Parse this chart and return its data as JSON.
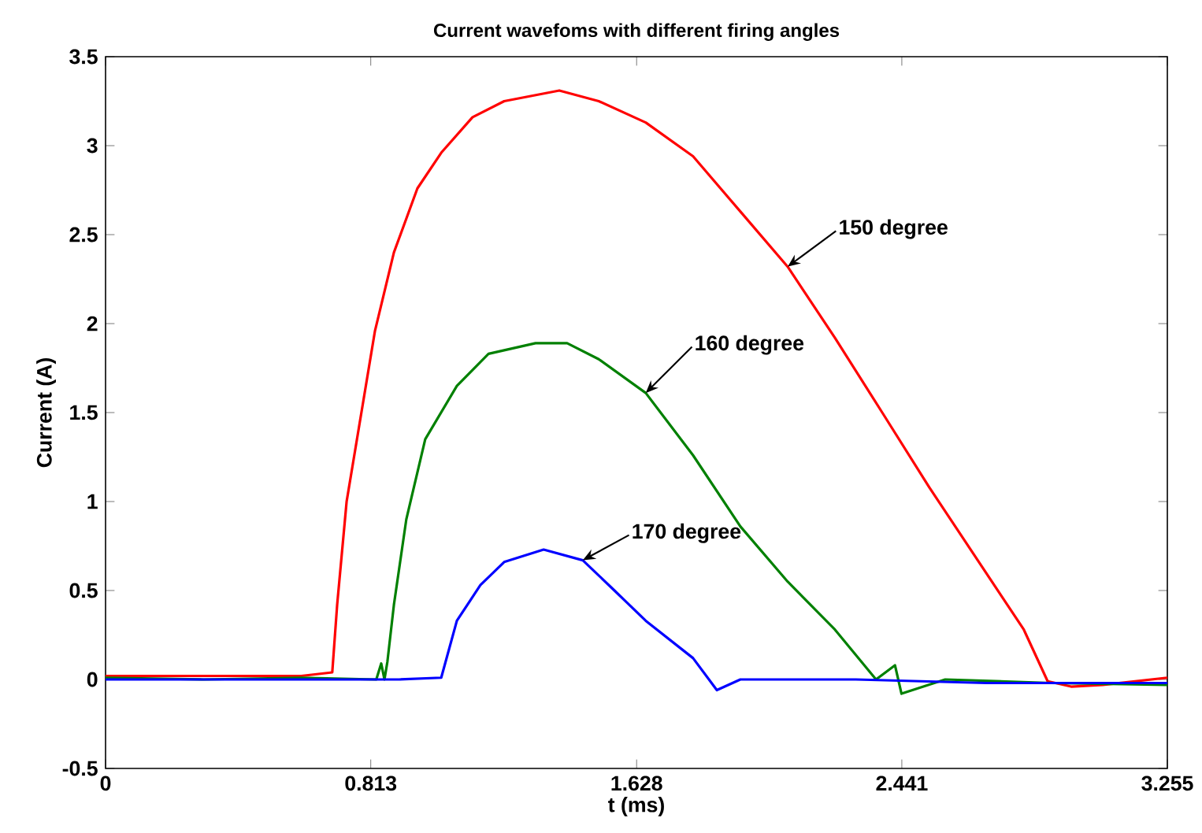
{
  "chart_data": {
    "type": "line",
    "title": "Current wavefoms with different firing angles",
    "xlabel": "t (ms)",
    "ylabel": "Current (A)",
    "xlim": [
      0,
      3.255
    ],
    "ylim": [
      -0.5,
      3.5
    ],
    "xticks": [
      0,
      0.813,
      1.628,
      2.441,
      3.255
    ],
    "yticks": [
      -0.5,
      0,
      0.5,
      1,
      1.5,
      2,
      2.5,
      3,
      3.5
    ],
    "grid": false,
    "marker": "none",
    "line_style": "solid",
    "series": [
      {
        "color": "#ff0000",
        "x": [
          0,
          0.2,
          0.4,
          0.6,
          0.695,
          0.71,
          0.739,
          0.778,
          0.826,
          0.884,
          0.956,
          1.029,
          1.125,
          1.222,
          1.391,
          1.512,
          1.656,
          1.801,
          1.946,
          2.091,
          2.236,
          2.381,
          2.525,
          2.67,
          2.815,
          2.888,
          2.96,
          3.057,
          3.255
        ],
        "values": [
          0.02,
          0.02,
          0.02,
          0.02,
          0.04,
          0.42,
          1.0,
          1.43,
          1.96,
          2.4,
          2.76,
          2.96,
          3.16,
          3.25,
          3.31,
          3.25,
          3.13,
          2.94,
          2.63,
          2.32,
          1.92,
          1.5,
          1.08,
          0.68,
          0.28,
          -0.01,
          -0.04,
          -0.03,
          0.01
        ]
      },
      {
        "color": "#008000",
        "x": [
          0,
          0.3,
          0.6,
          0.83,
          0.845,
          0.855,
          0.864,
          0.884,
          0.922,
          0.98,
          1.077,
          1.174,
          1.318,
          1.415,
          1.512,
          1.656,
          1.801,
          1.946,
          2.091,
          2.236,
          2.362,
          2.42,
          2.44,
          2.574,
          2.9,
          3.255
        ],
        "values": [
          0.01,
          0.0,
          0.01,
          0.0,
          0.09,
          0.0,
          0.1,
          0.42,
          0.9,
          1.35,
          1.65,
          1.83,
          1.89,
          1.89,
          1.8,
          1.61,
          1.26,
          0.86,
          0.55,
          0.28,
          0.0,
          0.08,
          -0.08,
          0.0,
          -0.02,
          -0.03
        ]
      },
      {
        "color": "#0000ff",
        "x": [
          0,
          0.3,
          0.6,
          0.9,
          1.029,
          1.077,
          1.149,
          1.222,
          1.343,
          1.463,
          1.56,
          1.656,
          1.801,
          1.874,
          1.946,
          2.3,
          2.7,
          3.255
        ],
        "values": [
          0.0,
          0.0,
          0.0,
          0.0,
          0.01,
          0.33,
          0.53,
          0.66,
          0.73,
          0.67,
          0.5,
          0.33,
          0.12,
          -0.06,
          0.0,
          0.0,
          -0.02,
          -0.02
        ]
      }
    ],
    "annotations": [
      {
        "text": "150 degree",
        "x": 2.091,
        "y": 2.32
      },
      {
        "text": "160 degree",
        "x": 1.656,
        "y": 1.61
      },
      {
        "text": "170 degree",
        "x": 1.463,
        "y": 0.67
      }
    ]
  }
}
